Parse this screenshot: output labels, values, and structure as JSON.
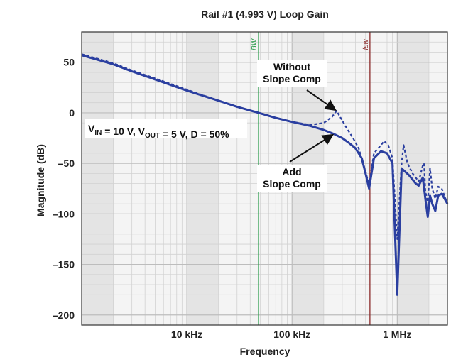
{
  "chart_data": {
    "type": "line",
    "title": "Rail #1 (4.993 V) Loop Gain",
    "xlabel": "Frequency",
    "ylabel": "Magnitude (dB)",
    "x_scale": "log",
    "xlim": [
      1000,
      3000000
    ],
    "ylim": [
      -210,
      80
    ],
    "grid": true,
    "x_ticks": [
      {
        "value": 10000,
        "label": "10 kHz"
      },
      {
        "value": 100000,
        "label": "100 kHz"
      },
      {
        "value": 1000000,
        "label": "1 MHz"
      }
    ],
    "y_ticks": [
      {
        "value": 50,
        "label": "50"
      },
      {
        "value": 0,
        "label": "0"
      },
      {
        "value": -50,
        "label": "–50"
      },
      {
        "value": -100,
        "label": "–100"
      },
      {
        "value": -150,
        "label": "–150"
      },
      {
        "value": -200,
        "label": "–200"
      }
    ],
    "markers": [
      {
        "label": "BW",
        "x": 48000,
        "color": "#2e9e4f"
      },
      {
        "label": "fsw",
        "x": 550000,
        "color": "#8b2a2a"
      }
    ],
    "series": [
      {
        "name": "Add Slope Comp",
        "style": "solid",
        "color": "#2b3fa0",
        "points": [
          [
            1000,
            57
          ],
          [
            2000,
            48
          ],
          [
            3000,
            41
          ],
          [
            5000,
            33
          ],
          [
            10000,
            22
          ],
          [
            20000,
            12
          ],
          [
            30000,
            6
          ],
          [
            48000,
            0
          ],
          [
            70000,
            -5
          ],
          [
            100000,
            -9
          ],
          [
            150000,
            -13
          ],
          [
            200000,
            -17
          ],
          [
            250000,
            -21
          ],
          [
            300000,
            -25
          ],
          [
            350000,
            -30
          ],
          [
            400000,
            -35
          ],
          [
            460000,
            -45
          ],
          [
            500000,
            -60
          ],
          [
            540000,
            -75
          ],
          [
            600000,
            -45
          ],
          [
            700000,
            -38
          ],
          [
            800000,
            -40
          ],
          [
            900000,
            -50
          ],
          [
            1000000,
            -180
          ],
          [
            1100000,
            -55
          ],
          [
            1300000,
            -62
          ],
          [
            1500000,
            -70
          ],
          [
            1600000,
            -72
          ],
          [
            1750000,
            -64
          ],
          [
            1850000,
            -85
          ],
          [
            1950000,
            -103
          ],
          [
            2050000,
            -82
          ],
          [
            2150000,
            -90
          ],
          [
            2300000,
            -97
          ],
          [
            2450000,
            -82
          ],
          [
            2650000,
            -80
          ],
          [
            3000000,
            -90
          ]
        ]
      },
      {
        "name": "Without Slope Comp",
        "style": "dashed",
        "color": "#2b3fa0",
        "points": [
          [
            1000,
            58
          ],
          [
            2000,
            49
          ],
          [
            3000,
            42
          ],
          [
            5000,
            34
          ],
          [
            10000,
            23
          ],
          [
            20000,
            12
          ],
          [
            30000,
            6
          ],
          [
            48000,
            0
          ],
          [
            70000,
            -5
          ],
          [
            100000,
            -9
          ],
          [
            150000,
            -12
          ],
          [
            200000,
            -10
          ],
          [
            240000,
            -4
          ],
          [
            265000,
            2
          ],
          [
            290000,
            -5
          ],
          [
            330000,
            -15
          ],
          [
            380000,
            -25
          ],
          [
            430000,
            -35
          ],
          [
            500000,
            -58
          ],
          [
            540000,
            -72
          ],
          [
            600000,
            -40
          ],
          [
            700000,
            -32
          ],
          [
            750000,
            -28
          ],
          [
            820000,
            -32
          ],
          [
            900000,
            -45
          ],
          [
            1000000,
            -125
          ],
          [
            1100000,
            -50
          ],
          [
            1150000,
            -32
          ],
          [
            1250000,
            -50
          ],
          [
            1400000,
            -60
          ],
          [
            1600000,
            -68
          ],
          [
            1750000,
            -52
          ],
          [
            1800000,
            -50
          ],
          [
            1850000,
            -78
          ],
          [
            1950000,
            -88
          ],
          [
            2050000,
            -55
          ],
          [
            2150000,
            -75
          ],
          [
            2300000,
            -85
          ],
          [
            2450000,
            -73
          ],
          [
            2650000,
            -75
          ],
          [
            3000000,
            -90
          ]
        ]
      }
    ],
    "annotations": [
      {
        "lines": [
          "Without",
          "Slope Comp"
        ],
        "points_to": [
          265000,
          2
        ]
      },
      {
        "lines": [
          "Add",
          "Slope Comp"
        ],
        "points_to": [
          250000,
          -21
        ]
      }
    ],
    "conditions_box": {
      "parts": [
        {
          "text": "V",
          "sub": "IN"
        },
        {
          "text": " = 10 V, V"
        },
        {
          "text": "",
          "sub": "OUT"
        },
        {
          "text": " = 5 V, D = 50%"
        }
      ]
    }
  }
}
